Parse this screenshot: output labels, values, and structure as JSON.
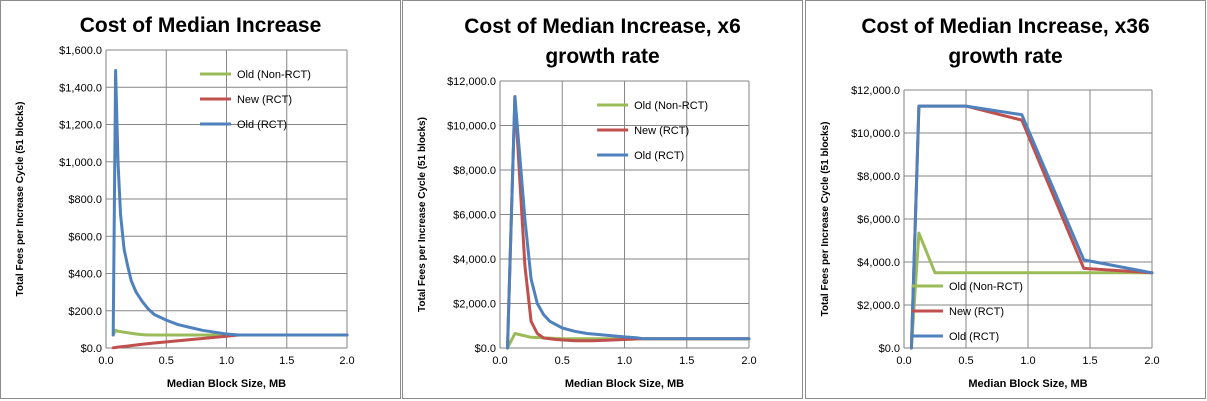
{
  "chart_data": [
    {
      "type": "line",
      "title": "Cost of Median Increase",
      "xlabel": "Median Block Size, MB",
      "ylabel": "Total Fees per Increase Cycle (51 blocks)",
      "xlim": [
        0,
        2.0
      ],
      "ylim": [
        0,
        1600
      ],
      "xticks": [
        "0.0",
        "0.5",
        "1.0",
        "1.5",
        "2.0"
      ],
      "yticks": [
        "$0.0",
        "$200.0",
        "$400.0",
        "$600.0",
        "$800.0",
        "$1,000.0",
        "$1,200.0",
        "$1,400.0",
        "$1,600.0"
      ],
      "grid": true,
      "legend_position": "top-right",
      "series": [
        {
          "name": "Old (Non-RCT)",
          "color": "#9bbb59",
          "x": [
            0.06,
            0.08,
            0.1,
            0.15,
            0.2,
            0.25,
            0.3,
            0.35,
            0.5,
            0.75,
            1.0,
            1.5,
            2.0
          ],
          "y": [
            70,
            95,
            90,
            85,
            80,
            75,
            72,
            70,
            70,
            70,
            70,
            70,
            70
          ]
        },
        {
          "name": "New (RCT)",
          "color": "#c0504d",
          "x": [
            0.06,
            0.1,
            0.2,
            0.3,
            0.4,
            0.5,
            0.6,
            0.7,
            0.8,
            0.9,
            1.0,
            1.1,
            1.5,
            2.0
          ],
          "y": [
            1,
            5,
            12,
            20,
            27,
            33,
            39,
            45,
            51,
            57,
            63,
            70,
            70,
            70
          ]
        },
        {
          "name": "Old (RCT)",
          "color": "#4f81bd",
          "x": [
            0.06,
            0.08,
            0.1,
            0.12,
            0.15,
            0.18,
            0.21,
            0.25,
            0.3,
            0.35,
            0.4,
            0.5,
            0.6,
            0.7,
            0.8,
            0.9,
            1.0,
            1.1,
            1.5,
            2.0
          ],
          "y": [
            70,
            1490,
            1000,
            720,
            530,
            440,
            360,
            300,
            250,
            210,
            180,
            150,
            125,
            110,
            95,
            85,
            75,
            70,
            70,
            70
          ]
        }
      ]
    },
    {
      "type": "line",
      "title": "Cost of Median Increase, x6 growth rate",
      "title_lines": [
        "Cost of Median Increase, x6",
        "growth rate"
      ],
      "xlabel": "Median Block Size, MB",
      "ylabel": "Total Fees per Increase Cycle (51 blocks)",
      "xlim": [
        0,
        2.0
      ],
      "ylim": [
        0,
        12000
      ],
      "xticks": [
        "0.0",
        "0.5",
        "1.0",
        "1.5",
        "2.0"
      ],
      "yticks": [
        "$0.0",
        "$2,000.0",
        "$4,000.0",
        "$6,000.0",
        "$8,000.0",
        "$10,000.0",
        "$12,000.0"
      ],
      "grid": true,
      "legend_position": "top-right",
      "series": [
        {
          "name": "Old (Non-RCT)",
          "color": "#9bbb59",
          "x": [
            0.06,
            0.12,
            0.25,
            0.5,
            0.75,
            1.0,
            1.25,
            1.5,
            2.0
          ],
          "y": [
            0,
            650,
            480,
            420,
            420,
            420,
            420,
            420,
            420
          ]
        },
        {
          "name": "New (RCT)",
          "color": "#c0504d",
          "x": [
            0.06,
            0.12,
            0.2,
            0.25,
            0.3,
            0.35,
            0.45,
            0.6,
            0.75,
            0.9,
            1.0,
            1.15,
            1.5,
            2.0
          ],
          "y": [
            0,
            11300,
            3700,
            1200,
            650,
            450,
            380,
            330,
            330,
            360,
            380,
            420,
            420,
            420
          ]
        },
        {
          "name": "Old (RCT)",
          "color": "#4f81bd",
          "x": [
            0.06,
            0.12,
            0.2,
            0.25,
            0.3,
            0.35,
            0.4,
            0.5,
            0.6,
            0.7,
            0.8,
            0.9,
            1.0,
            1.1,
            1.15,
            1.5,
            2.0
          ],
          "y": [
            0,
            11300,
            5800,
            3100,
            2000,
            1500,
            1200,
            900,
            750,
            650,
            600,
            550,
            500,
            460,
            420,
            420,
            420
          ]
        }
      ]
    },
    {
      "type": "line",
      "title": "Cost of Median Increase, x36 growth rate",
      "title_lines": [
        "Cost of Median Increase, x36",
        "growth rate"
      ],
      "xlabel": "Median Block Size, MB",
      "ylabel": "Total Fees per Increase Cycle (51 blocks)",
      "xlim": [
        0,
        2.0
      ],
      "ylim": [
        0,
        12000
      ],
      "xticks": [
        "0.0",
        "0.5",
        "1.0",
        "1.5",
        "2.0"
      ],
      "yticks": [
        "$0.0",
        "$2,000.0",
        "$4,000.0",
        "$6,000.0",
        "$8,000.0",
        "$10,000.0",
        "$12,000.0"
      ],
      "grid": true,
      "legend_position": "bottom-left",
      "series": [
        {
          "name": "Old (Non-RCT)",
          "color": "#9bbb59",
          "x": [
            0.06,
            0.12,
            0.25,
            0.5,
            1.0,
            1.5,
            2.0
          ],
          "y": [
            0,
            5350,
            3500,
            3500,
            3500,
            3500,
            3500
          ]
        },
        {
          "name": "New (RCT)",
          "color": "#c0504d",
          "x": [
            0.06,
            0.12,
            0.25,
            0.5,
            0.95,
            1.45,
            2.0
          ],
          "y": [
            0,
            11250,
            11250,
            11250,
            10600,
            3700,
            3500
          ]
        },
        {
          "name": "Old (RCT)",
          "color": "#4f81bd",
          "x": [
            0.06,
            0.12,
            0.25,
            0.5,
            0.95,
            1.45,
            2.0
          ],
          "y": [
            0,
            11250,
            11250,
            11250,
            10850,
            4100,
            3500
          ]
        }
      ]
    }
  ]
}
